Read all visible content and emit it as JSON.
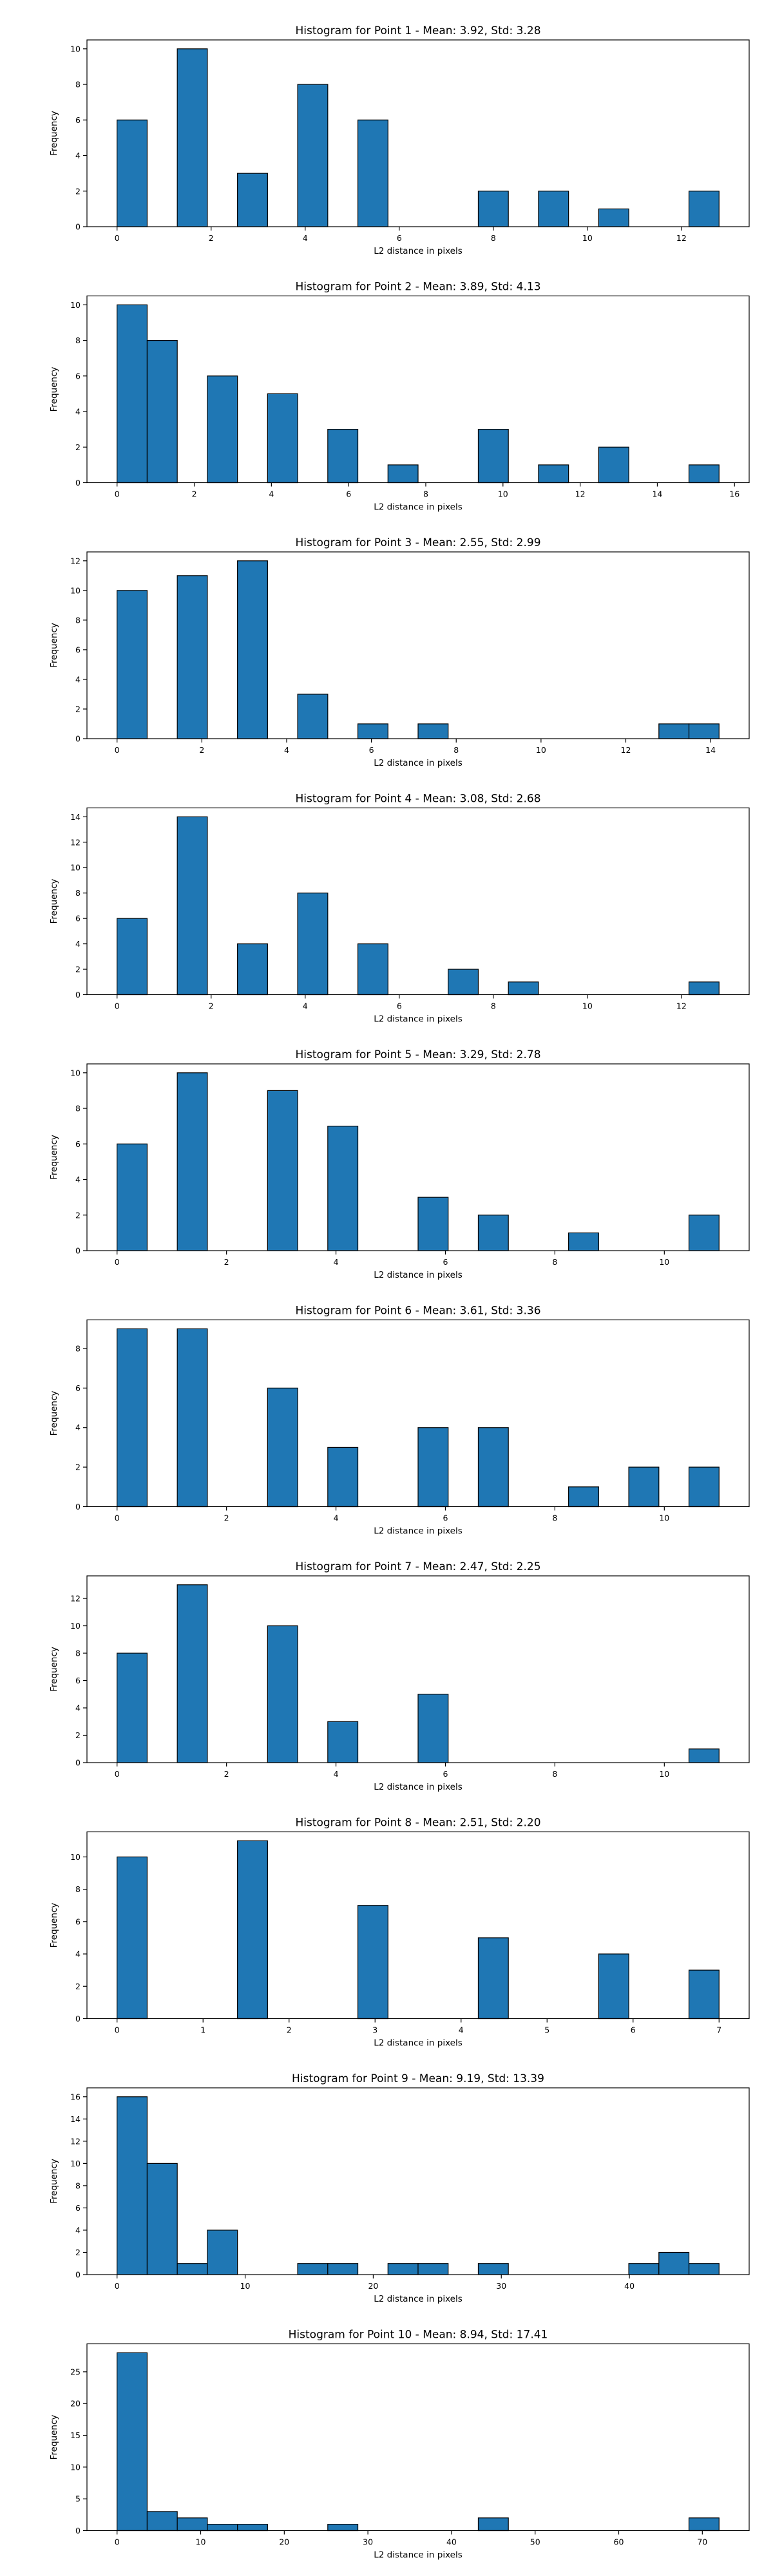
{
  "xlabel": "L2 distance in pixels",
  "ylabel": "Frequency",
  "chart_data": [
    {
      "type": "bar",
      "title": "Histogram for Point 1 - Mean: 3.92, Std: 3.28",
      "xlabel": "L2 distance in pixels",
      "ylabel": "Frequency",
      "xlim": [
        -0.64,
        13.44
      ],
      "ylim": [
        0,
        10.5
      ],
      "xticks": [
        0,
        2,
        4,
        6,
        8,
        10,
        12
      ],
      "yticks": [
        0,
        2,
        4,
        6,
        8,
        10
      ],
      "bin_edges": [
        0,
        0.64,
        1.28,
        1.92,
        2.56,
        3.2,
        3.84,
        4.48,
        5.12,
        5.76,
        6.4,
        7.04,
        7.68,
        8.32,
        8.96,
        9.6,
        10.24,
        10.88,
        11.52,
        12.16,
        12.8
      ],
      "values": [
        6,
        0,
        10,
        0,
        3,
        0,
        8,
        0,
        6,
        0,
        0,
        0,
        2,
        0,
        2,
        0,
        1,
        0,
        0,
        2
      ]
    },
    {
      "type": "bar",
      "title": "Histogram for Point 2 - Mean: 3.89, Std: 4.13",
      "xlabel": "L2 distance in pixels",
      "ylabel": "Frequency",
      "xlim": [
        -0.78,
        16.38
      ],
      "ylim": [
        0,
        10.5
      ],
      "xticks": [
        0,
        2,
        4,
        6,
        8,
        10,
        12,
        14,
        16
      ],
      "yticks": [
        0,
        2,
        4,
        6,
        8,
        10
      ],
      "bin_edges": [
        0,
        0.78,
        1.56,
        2.34,
        3.12,
        3.9,
        4.68,
        5.46,
        6.24,
        7.02,
        7.8,
        8.58,
        9.36,
        10.14,
        10.92,
        11.7,
        12.48,
        13.26,
        14.04,
        14.82,
        15.6
      ],
      "values": [
        10,
        8,
        0,
        6,
        0,
        5,
        0,
        3,
        0,
        1,
        0,
        0,
        3,
        0,
        1,
        0,
        2,
        0,
        0,
        1
      ]
    },
    {
      "type": "bar",
      "title": "Histogram for Point 3 - Mean: 2.55, Std: 2.99",
      "xlabel": "L2 distance in pixels",
      "ylabel": "Frequency",
      "xlim": [
        -0.71,
        14.91
      ],
      "ylim": [
        0,
        12.6
      ],
      "xticks": [
        0,
        2,
        4,
        6,
        8,
        10,
        12,
        14
      ],
      "yticks": [
        0,
        2,
        4,
        6,
        8,
        10,
        12
      ],
      "bin_edges": [
        0,
        0.71,
        1.42,
        2.13,
        2.84,
        3.55,
        4.26,
        4.97,
        5.68,
        6.39,
        7.1,
        7.81,
        8.52,
        9.23,
        9.94,
        10.65,
        11.36,
        12.07,
        12.78,
        13.49,
        14.2
      ],
      "values": [
        10,
        0,
        11,
        0,
        12,
        0,
        3,
        0,
        1,
        0,
        1,
        0,
        0,
        0,
        0,
        0,
        0,
        0,
        1,
        1
      ]
    },
    {
      "type": "bar",
      "title": "Histogram for Point 4 - Mean: 3.08, Std: 2.68",
      "xlabel": "L2 distance in pixels",
      "ylabel": "Frequency",
      "xlim": [
        -0.64,
        13.44
      ],
      "ylim": [
        0,
        14.7
      ],
      "xticks": [
        0,
        2,
        4,
        6,
        8,
        10,
        12
      ],
      "yticks": [
        0,
        2,
        4,
        6,
        8,
        10,
        12,
        14
      ],
      "bin_edges": [
        0,
        0.64,
        1.28,
        1.92,
        2.56,
        3.2,
        3.84,
        4.48,
        5.12,
        5.76,
        6.4,
        7.04,
        7.68,
        8.32,
        8.96,
        9.6,
        10.24,
        10.88,
        11.52,
        12.16,
        12.8
      ],
      "values": [
        6,
        0,
        14,
        0,
        4,
        0,
        8,
        0,
        4,
        0,
        0,
        2,
        0,
        1,
        0,
        0,
        0,
        0,
        0,
        1
      ]
    },
    {
      "type": "bar",
      "title": "Histogram for Point 5 - Mean: 3.29, Std: 2.78",
      "xlabel": "L2 distance in pixels",
      "ylabel": "Frequency",
      "xlim": [
        -0.55,
        11.55
      ],
      "ylim": [
        0,
        10.5
      ],
      "xticks": [
        0,
        2,
        4,
        6,
        8,
        10
      ],
      "yticks": [
        0,
        2,
        4,
        6,
        8,
        10
      ],
      "bin_edges": [
        0,
        0.55,
        1.1,
        1.65,
        2.2,
        2.75,
        3.3,
        3.85,
        4.4,
        4.95,
        5.5,
        6.05,
        6.6,
        7.15,
        7.7,
        8.25,
        8.8,
        9.35,
        9.9,
        10.45,
        11.0
      ],
      "values": [
        6,
        0,
        10,
        0,
        0,
        9,
        0,
        7,
        0,
        0,
        3,
        0,
        2,
        0,
        0,
        1,
        0,
        0,
        0,
        2
      ]
    },
    {
      "type": "bar",
      "title": "Histogram for Point 6 - Mean: 3.61, Std: 3.36",
      "xlabel": "L2 distance in pixels",
      "ylabel": "Frequency",
      "xlim": [
        -0.55,
        11.55
      ],
      "ylim": [
        0,
        9.45
      ],
      "xticks": [
        0,
        2,
        4,
        6,
        8,
        10
      ],
      "yticks": [
        0,
        2,
        4,
        6,
        8
      ],
      "bin_edges": [
        0,
        0.55,
        1.1,
        1.65,
        2.2,
        2.75,
        3.3,
        3.85,
        4.4,
        4.95,
        5.5,
        6.05,
        6.6,
        7.15,
        7.7,
        8.25,
        8.8,
        9.35,
        9.9,
        10.45,
        11.0
      ],
      "values": [
        9,
        0,
        9,
        0,
        0,
        6,
        0,
        3,
        0,
        0,
        4,
        0,
        4,
        0,
        0,
        1,
        0,
        2,
        0,
        2
      ]
    },
    {
      "type": "bar",
      "title": "Histogram for Point 7 - Mean: 2.47, Std: 2.25",
      "xlabel": "L2 distance in pixels",
      "ylabel": "Frequency",
      "xlim": [
        -0.55,
        11.55
      ],
      "ylim": [
        0,
        13.65
      ],
      "xticks": [
        0,
        2,
        4,
        6,
        8,
        10
      ],
      "yticks": [
        0,
        2,
        4,
        6,
        8,
        10,
        12
      ],
      "bin_edges": [
        0,
        0.55,
        1.1,
        1.65,
        2.2,
        2.75,
        3.3,
        3.85,
        4.4,
        4.95,
        5.5,
        6.05,
        6.6,
        7.15,
        7.7,
        8.25,
        8.8,
        9.35,
        9.9,
        10.45,
        11.0
      ],
      "values": [
        8,
        0,
        13,
        0,
        0,
        10,
        0,
        3,
        0,
        0,
        5,
        0,
        0,
        0,
        0,
        0,
        0,
        0,
        0,
        1
      ]
    },
    {
      "type": "bar",
      "title": "Histogram for Point 8 - Mean: 2.51, Std: 2.20",
      "xlabel": "L2 distance in pixels",
      "ylabel": "Frequency",
      "xlim": [
        -0.35,
        7.35
      ],
      "ylim": [
        0,
        11.55
      ],
      "xticks": [
        0,
        1,
        2,
        3,
        4,
        5,
        6,
        7
      ],
      "yticks": [
        0,
        2,
        4,
        6,
        8,
        10
      ],
      "bin_edges": [
        0,
        0.35,
        0.7,
        1.05,
        1.4,
        1.75,
        2.1,
        2.45,
        2.8,
        3.15,
        3.5,
        3.85,
        4.2,
        4.55,
        4.9,
        5.25,
        5.6,
        5.95,
        6.3,
        6.65,
        7.0
      ],
      "values": [
        10,
        0,
        0,
        0,
        11,
        0,
        0,
        0,
        7,
        0,
        0,
        0,
        5,
        0,
        0,
        0,
        4,
        0,
        0,
        3
      ]
    },
    {
      "type": "bar",
      "title": "Histogram for Point 9 - Mean: 9.19, Std: 13.39",
      "xlabel": "L2 distance in pixels",
      "ylabel": "Frequency",
      "xlim": [
        -2.35,
        49.35
      ],
      "ylim": [
        0,
        16.8
      ],
      "xticks": [
        0,
        10,
        20,
        30,
        40
      ],
      "yticks": [
        0,
        2,
        4,
        6,
        8,
        10,
        12,
        14,
        16
      ],
      "bin_edges": [
        0,
        2.35,
        4.7,
        7.05,
        9.4,
        11.75,
        14.1,
        16.45,
        18.8,
        21.15,
        23.5,
        25.85,
        28.2,
        30.55,
        32.9,
        35.25,
        37.6,
        39.95,
        42.3,
        44.65,
        47.0
      ],
      "values": [
        16,
        10,
        1,
        4,
        0,
        0,
        1,
        1,
        0,
        1,
        1,
        0,
        1,
        0,
        0,
        0,
        0,
        1,
        2,
        1
      ]
    },
    {
      "type": "bar",
      "title": "Histogram for Point 10 - Mean: 8.94, Std: 17.41",
      "xlabel": "L2 distance in pixels",
      "ylabel": "Frequency",
      "xlim": [
        -3.6,
        75.6
      ],
      "ylim": [
        0,
        29.4
      ],
      "xticks": [
        0,
        10,
        20,
        30,
        40,
        50,
        60,
        70
      ],
      "yticks": [
        0,
        5,
        10,
        15,
        20,
        25
      ],
      "bin_edges": [
        0,
        3.6,
        7.2,
        10.8,
        14.4,
        18.0,
        21.6,
        25.2,
        28.8,
        32.4,
        36.0,
        39.6,
        43.2,
        46.8,
        50.4,
        54.0,
        57.6,
        61.2,
        64.8,
        68.4,
        72.0
      ],
      "values": [
        28,
        3,
        2,
        1,
        1,
        0,
        0,
        1,
        0,
        0,
        0,
        0,
        2,
        0,
        0,
        0,
        0,
        0,
        0,
        2
      ]
    }
  ]
}
